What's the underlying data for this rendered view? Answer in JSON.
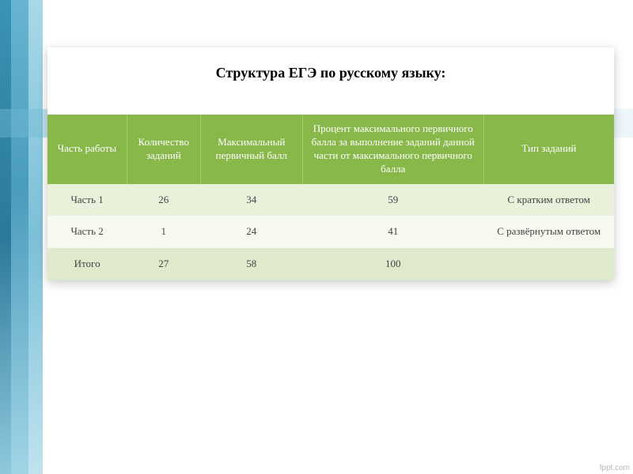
{
  "title": "Структура ЕГЭ по русскому языку:",
  "table": {
    "header_bg": "#88b84a",
    "header_text_color": "#ffffff",
    "row_colors": [
      "#eaf1db",
      "#f6f9ef",
      "#dfe9cc"
    ],
    "column_widths_pct": [
      14,
      13,
      18,
      32,
      23
    ],
    "columns": [
      "Часть работы",
      "Количество заданий",
      "Максимальный первичный балл",
      "Процент максимального первичного балла за выполнение заданий данной части от максимального первичного балла",
      "Тип заданий"
    ],
    "rows": [
      [
        "Часть 1",
        "26",
        "34",
        "59",
        "С кратким ответом"
      ],
      [
        "Часть 2",
        "1",
        "24",
        "41",
        "С развёрнутым ответом"
      ],
      [
        "Итого",
        "27",
        "58",
        "100",
        ""
      ]
    ]
  },
  "footer_credit": "fppt.com"
}
